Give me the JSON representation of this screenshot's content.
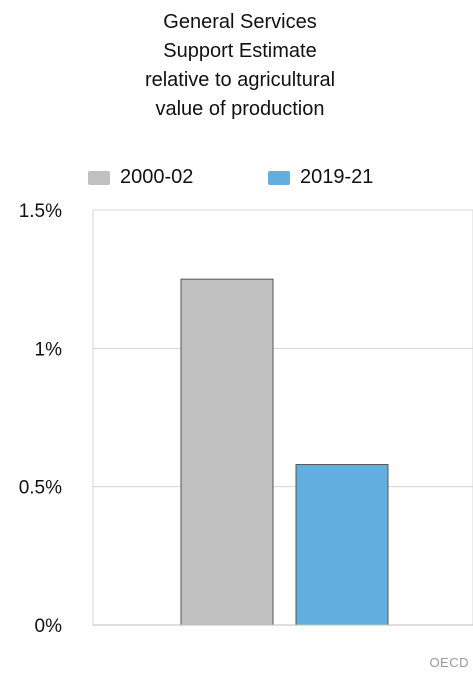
{
  "chart_data": {
    "type": "bar",
    "title_lines": [
      "General Services",
      "Support Estimate",
      "relative to agricultural",
      "value of production"
    ],
    "categories": [
      ""
    ],
    "series": [
      {
        "name": "2000-02",
        "values": [
          1.25
        ],
        "color": "#c0c0c0"
      },
      {
        "name": "2019-21",
        "values": [
          0.58
        ],
        "color": "#62aee0"
      }
    ],
    "y_ticks": [
      {
        "value": 0,
        "label": "0%"
      },
      {
        "value": 0.5,
        "label": "0.5%"
      },
      {
        "value": 1,
        "label": "1%"
      },
      {
        "value": 1.5,
        "label": "1.5%"
      }
    ],
    "ylim": [
      0,
      1.5
    ],
    "grid": true,
    "legend_position": "top"
  },
  "footer": {
    "source": "OECD"
  }
}
